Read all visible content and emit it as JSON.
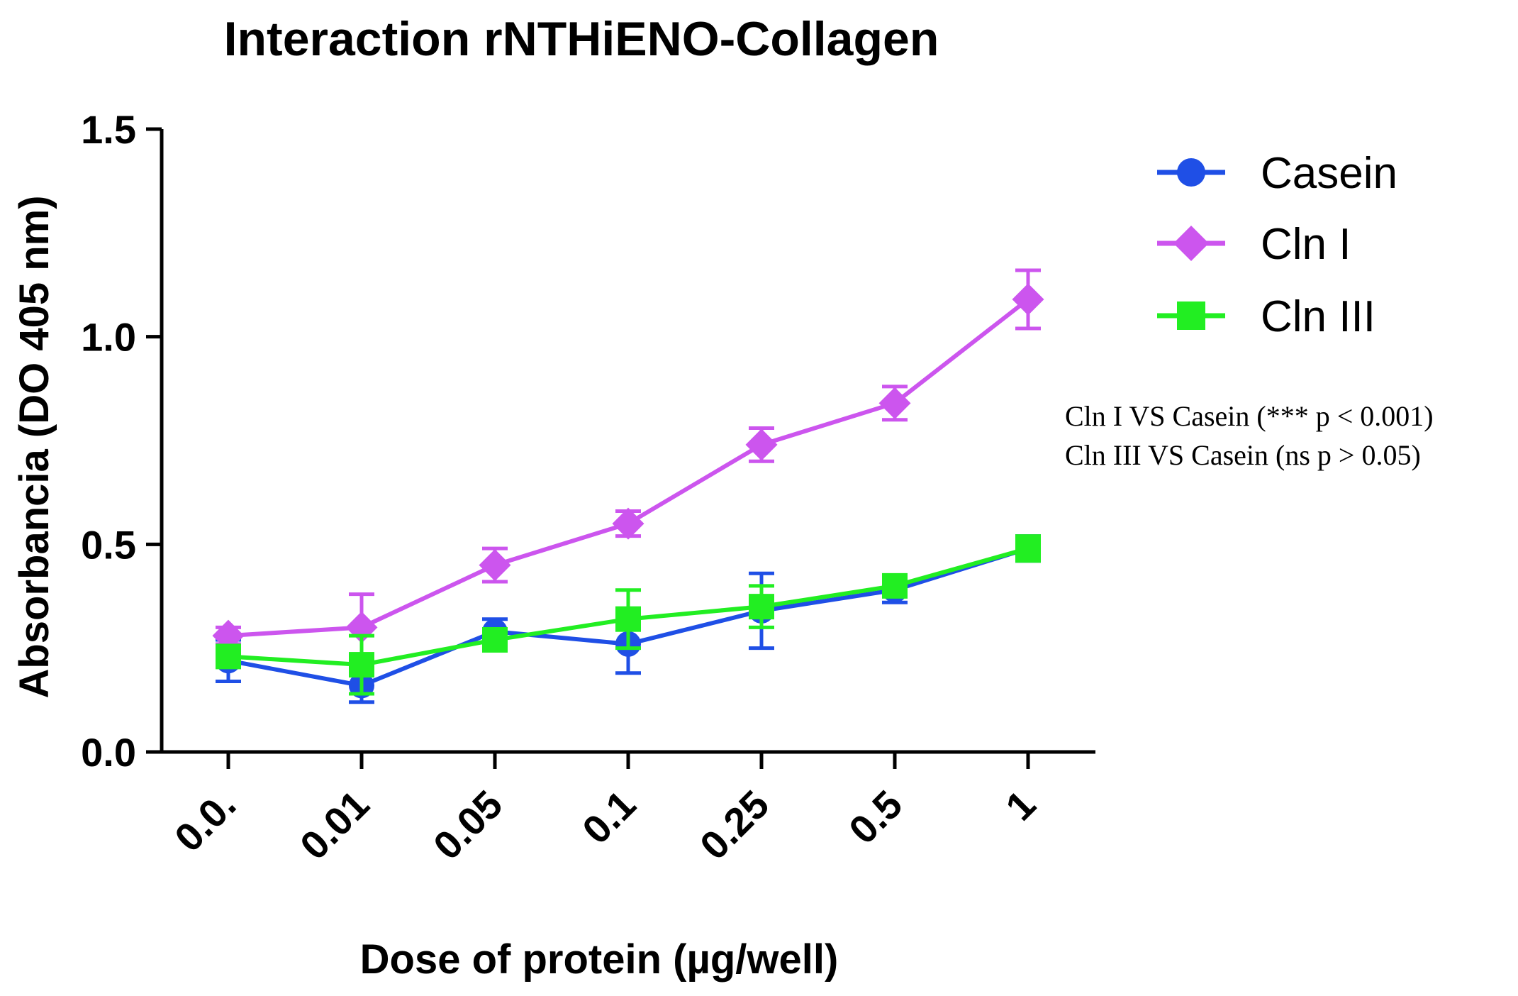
{
  "chart_data": {
    "type": "line",
    "title": "Interaction rNTHiENO-Collagen",
    "xlabel": "Dose of protein (µg/well)",
    "ylabel": "Absorbancia (DO 405 nm)",
    "categories": [
      "0.0.",
      "0.01",
      "0.05",
      "0.1",
      "0.25",
      "0.5",
      "1"
    ],
    "ylim": [
      0,
      1.5
    ],
    "yticks": [
      0,
      0.5,
      1.0,
      1.5
    ],
    "ytick_labels": [
      "0.0",
      "0.5",
      "1.0",
      "1.5"
    ],
    "grid": false,
    "legend_position": "top-right",
    "series": [
      {
        "name": "Casein",
        "color": "#1f4fe6",
        "marker": "circle",
        "values": [
          0.22,
          0.16,
          0.29,
          0.26,
          0.34,
          0.39,
          0.49
        ],
        "errors": [
          0.05,
          0.04,
          0.03,
          0.07,
          0.09,
          0.03,
          0.03
        ]
      },
      {
        "name": "Cln I",
        "color": "#cc55ee",
        "marker": "diamond",
        "values": [
          0.28,
          0.3,
          0.45,
          0.55,
          0.74,
          0.84,
          1.09
        ],
        "errors": [
          0.02,
          0.08,
          0.04,
          0.03,
          0.04,
          0.04,
          0.07
        ]
      },
      {
        "name": "Cln III",
        "color": "#22ee22",
        "marker": "square",
        "values": [
          0.23,
          0.21,
          0.27,
          0.32,
          0.35,
          0.4,
          0.49
        ],
        "errors": [
          0.02,
          0.07,
          0.02,
          0.07,
          0.05,
          0.02,
          0.03
        ]
      }
    ],
    "annotations": [
      "Cln I VS Casein (*** p < 0.001)",
      "Cln III VS Casein (ns p > 0.05)"
    ]
  }
}
